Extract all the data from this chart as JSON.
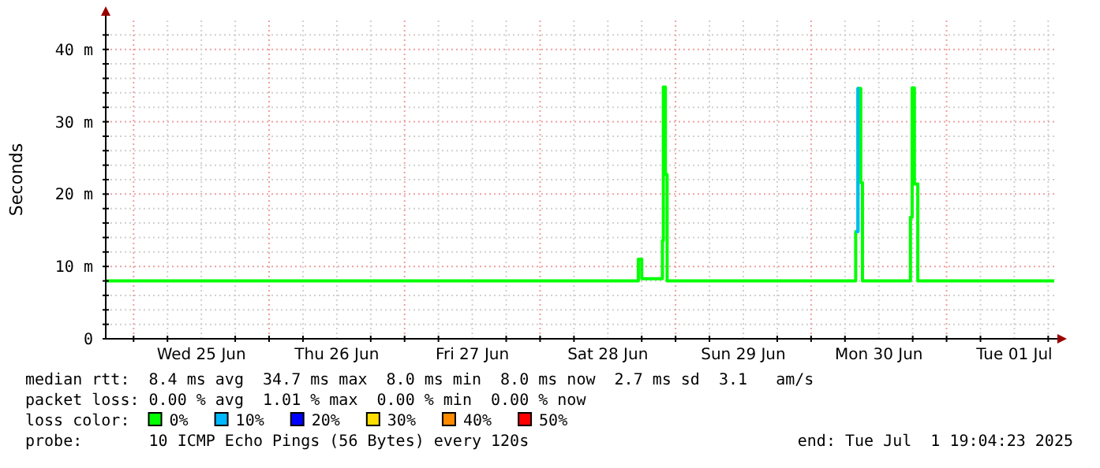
{
  "chart_data": {
    "type": "step",
    "ylabel": "Seconds",
    "legend_title": "loss color:",
    "legend": "bottom",
    "grid": true,
    "marker": "none",
    "line_style": "solid",
    "xlim": [
      "2025-06-24T19:04",
      "2025-07-01T19:04"
    ],
    "xticks": [
      {
        "value": "2025-06-25T00:00",
        "label": null
      },
      {
        "value": "2025-06-25T06:00",
        "label": null
      },
      {
        "value": "2025-06-25T12:00",
        "label": "Wed 25 Jun"
      },
      {
        "value": "2025-06-25T18:00",
        "label": null
      },
      {
        "value": "2025-06-26T00:00",
        "label": null
      },
      {
        "value": "2025-06-26T06:00",
        "label": null
      },
      {
        "value": "2025-06-26T12:00",
        "label": "Thu 26 Jun"
      },
      {
        "value": "2025-06-26T18:00",
        "label": null
      },
      {
        "value": "2025-06-27T00:00",
        "label": null
      },
      {
        "value": "2025-06-27T06:00",
        "label": null
      },
      {
        "value": "2025-06-27T12:00",
        "label": "Fri 27 Jun"
      },
      {
        "value": "2025-06-27T18:00",
        "label": null
      },
      {
        "value": "2025-06-28T00:00",
        "label": null
      },
      {
        "value": "2025-06-28T06:00",
        "label": null
      },
      {
        "value": "2025-06-28T12:00",
        "label": "Sat 28 Jun"
      },
      {
        "value": "2025-06-28T18:00",
        "label": null
      },
      {
        "value": "2025-06-29T00:00",
        "label": null
      },
      {
        "value": "2025-06-29T06:00",
        "label": null
      },
      {
        "value": "2025-06-29T12:00",
        "label": "Sun 29 Jun"
      },
      {
        "value": "2025-06-29T18:00",
        "label": null
      },
      {
        "value": "2025-06-30T00:00",
        "label": null
      },
      {
        "value": "2025-06-30T06:00",
        "label": null
      },
      {
        "value": "2025-06-30T12:00",
        "label": "Mon 30 Jun"
      },
      {
        "value": "2025-06-30T18:00",
        "label": null
      },
      {
        "value": "2025-07-01T00:00",
        "label": null
      },
      {
        "value": "2025-07-01T06:00",
        "label": null
      },
      {
        "value": "2025-07-01T12:00",
        "label": "Tue 01 Jul"
      },
      {
        "value": "2025-07-01T18:00",
        "label": null
      }
    ],
    "ylim": [
      0,
      44
    ],
    "yticks": [
      {
        "value": 0,
        "label": "0"
      },
      {
        "value": 2,
        "label": null
      },
      {
        "value": 4,
        "label": null
      },
      {
        "value": 6,
        "label": null
      },
      {
        "value": 8,
        "label": null
      },
      {
        "value": 10,
        "label": "10 m"
      },
      {
        "value": 12,
        "label": null
      },
      {
        "value": 14,
        "label": null
      },
      {
        "value": 16,
        "label": null
      },
      {
        "value": 18,
        "label": null
      },
      {
        "value": 20,
        "label": "20 m"
      },
      {
        "value": 22,
        "label": null
      },
      {
        "value": 24,
        "label": null
      },
      {
        "value": 26,
        "label": null
      },
      {
        "value": 28,
        "label": null
      },
      {
        "value": 30,
        "label": "30 m"
      },
      {
        "value": 32,
        "label": null
      },
      {
        "value": 34,
        "label": null
      },
      {
        "value": 36,
        "label": null
      },
      {
        "value": 38,
        "label": null
      },
      {
        "value": 40,
        "label": "40 m"
      },
      {
        "value": 42,
        "label": null
      }
    ],
    "series": [
      {
        "name": "0%",
        "color": "#00ff00",
        "x": [
          "2025-06-24T19:04",
          "2025-06-28T17:24",
          "2025-06-28T18:00",
          "2025-06-28T21:40",
          "2025-06-28T21:50",
          "2025-06-28T22:12",
          "2025-06-28T22:30",
          "2025-06-30T07:54",
          "2025-06-30T08:18",
          "2025-06-30T08:48",
          "2025-06-30T09:06",
          "2025-06-30T17:36",
          "2025-06-30T17:54",
          "2025-06-30T18:18",
          "2025-06-30T18:54",
          "2025-07-01T19:04"
        ],
        "values": [
          8.0,
          11.0,
          8.3,
          13.6,
          34.8,
          22.7,
          8.0,
          14.8,
          34.6,
          21.6,
          8.0,
          16.8,
          34.7,
          21.4,
          8.0,
          8.0
        ]
      },
      {
        "name": "10%",
        "color": "#00b8ff",
        "x": [
          "2025-06-30T07:54",
          "2025-06-30T08:18",
          "2025-06-30T08:30"
        ],
        "values": [
          14.8,
          34.6,
          34.6
        ]
      },
      {
        "name": "20%",
        "color": "#0000ff"
      },
      {
        "name": "30%",
        "color": "#ffde00"
      },
      {
        "name": "40%",
        "color": "#ff8a00"
      },
      {
        "name": "50%",
        "color": "#ff0000"
      }
    ],
    "annotations": [
      "median rtt:  8.4 ms avg  34.7 ms max  8.0 ms min  8.0 ms now  2.7 ms sd  3.1   am/s",
      "packet loss: 0.00 % avg  1.01 % max  0.00 % min  0.00 % now",
      "probe:       10 ICMP Echo Pings (56 Bytes) every 120s",
      "end: Tue Jul  1 19:04:23 2025"
    ]
  }
}
